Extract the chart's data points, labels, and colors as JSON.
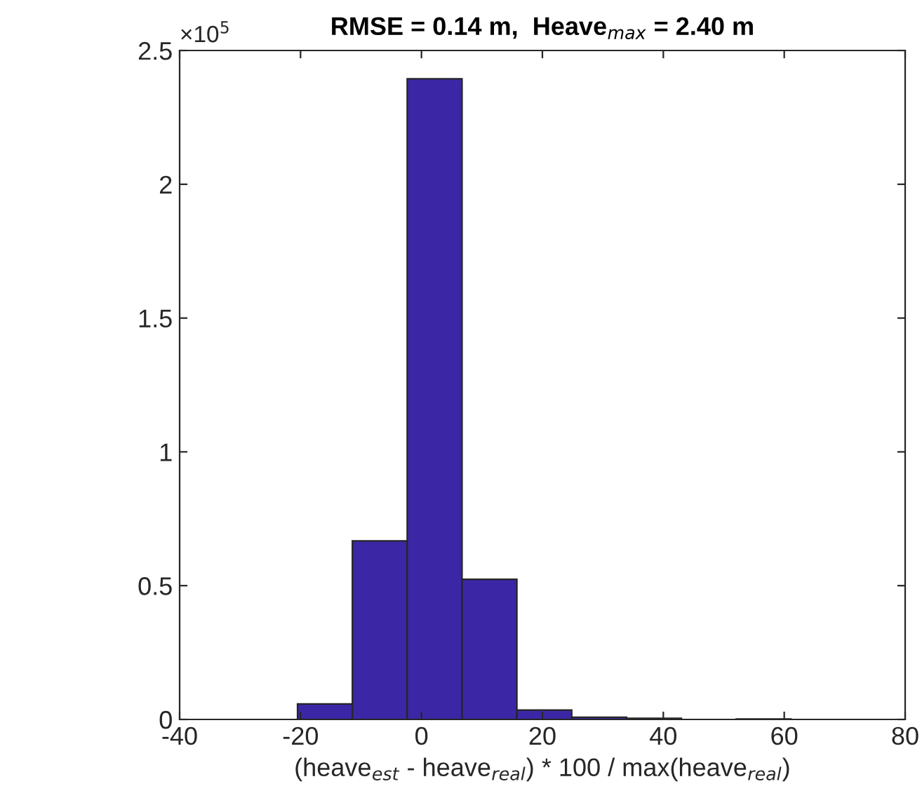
{
  "chart_data": {
    "type": "histogram",
    "title": "RMSE = 0.14 m,  Heave$_{max}$ = 2.40 m",
    "xlabel": "(heave$_{est}$ - heave$_{real}$) * 100 / max(heave$_{real}$)",
    "bins": [
      -20.5,
      -11.43,
      -2.36,
      6.71,
      15.78,
      24.85,
      33.92,
      42.99,
      52.06,
      61.13,
      70.2
    ],
    "values": [
      0.058,
      0.667,
      2.394,
      0.524,
      0.035,
      0.008,
      0.004,
      null,
      0.002,
      null
    ],
    "color": "#3b27a5",
    "xlim": [
      -40,
      80
    ],
    "xticks": [
      -40,
      -20,
      0,
      20,
      40,
      60,
      80
    ],
    "ylim": [
      0,
      2.5
    ],
    "yticks": [
      0,
      0.5,
      1,
      1.5,
      2,
      2.5
    ],
    "annotations": [
      "×10$^{5}$"
    ],
    "grid": false
  }
}
